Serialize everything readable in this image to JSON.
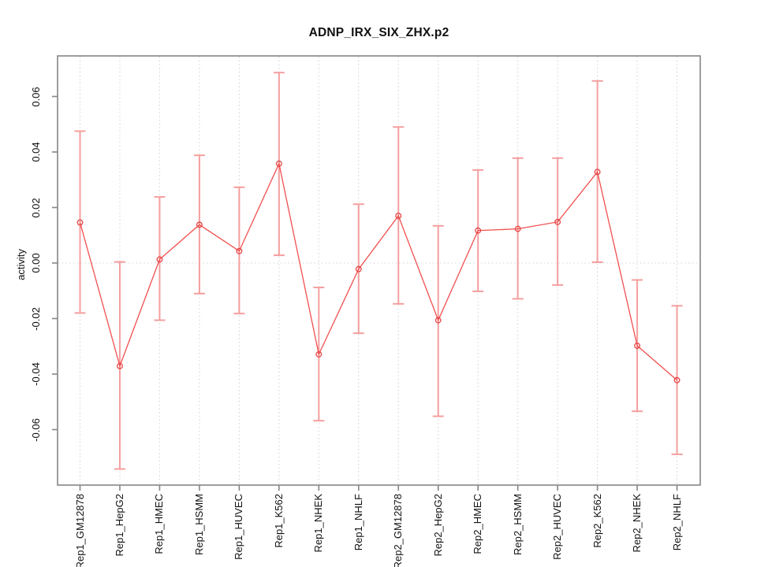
{
  "title": "ADNP_IRX_SIX_ZHX.p2",
  "ylabel": "activity",
  "colors": {
    "series_line": "#f14f4f",
    "point_stroke": "#e64545",
    "error_bar": "#f59e9e",
    "box": "#858585",
    "grid": "#d4d4d4",
    "text": "#111111",
    "background": "#ffffff"
  },
  "chart_data": {
    "type": "line",
    "title": "ADNP_IRX_SIX_ZHX.p2",
    "xlabel": "",
    "ylabel": "activity",
    "legend": "none",
    "grid": "dotted vertical line at each category; dotted horizontal line at y=0",
    "categories": [
      "Rep1_GM12878",
      "Rep1_HepG2",
      "Rep1_HMEC",
      "Rep1_HSMM",
      "Rep1_HUVEC",
      "Rep1_K562",
      "Rep1_NHEK",
      "Rep1_NHLF",
      "Rep2_GM12878",
      "Rep2_HepG2",
      "Rep2_HMEC",
      "Rep2_HSMM",
      "Rep2_HUVEC",
      "Rep2_K562",
      "Rep2_NHEK",
      "Rep2_NHLF"
    ],
    "series": [
      {
        "name": "activity",
        "marker": "open-circle",
        "values": [
          0.0146,
          -0.0371,
          0.0013,
          0.0138,
          0.0043,
          0.0358,
          -0.0329,
          -0.0022,
          0.017,
          -0.0206,
          0.0117,
          0.0123,
          0.0148,
          0.0328,
          -0.0298,
          -0.0422
        ],
        "error_upper": [
          0.0475,
          0.0004,
          0.0238,
          0.0388,
          0.0273,
          0.0686,
          -0.0088,
          0.0212,
          0.049,
          0.0134,
          0.0335,
          0.0378,
          0.0378,
          0.0656,
          -0.0061,
          -0.0154
        ],
        "error_lower": [
          -0.018,
          -0.0742,
          -0.0206,
          -0.011,
          -0.0182,
          0.0028,
          -0.0568,
          -0.0253,
          -0.0147,
          -0.0552,
          -0.0102,
          -0.0129,
          -0.0079,
          0.0003,
          -0.0534,
          -0.0689
        ]
      }
    ],
    "y_ticks": [
      -0.06,
      -0.04,
      -0.02,
      0.0,
      0.02,
      0.04,
      0.06
    ],
    "y_tick_labels": [
      "-0.06",
      "-0.04",
      "-0.02",
      "0.00",
      "0.02",
      "0.04",
      "0.06"
    ],
    "ylim": [
      -0.08,
      0.0746
    ]
  }
}
